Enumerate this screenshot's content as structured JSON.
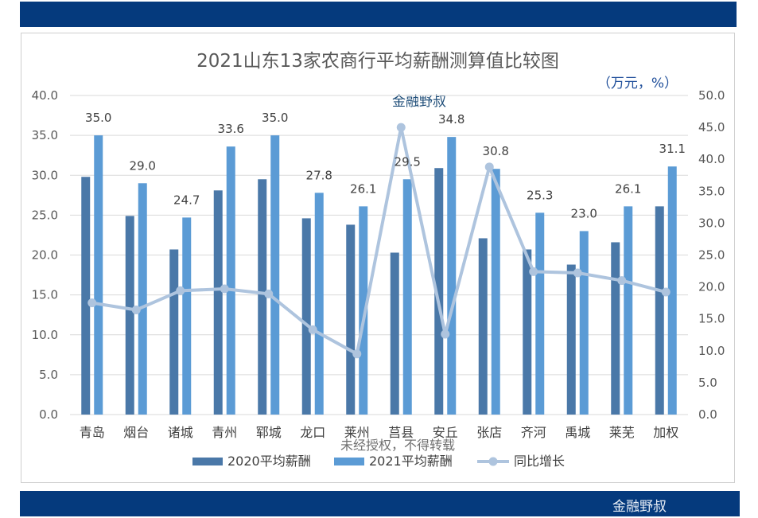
{
  "header": {
    "bar_color": "#053a7d"
  },
  "footer": {
    "brand": "金融野叔"
  },
  "watermarks": {
    "brand": "金融野叔",
    "notice": "未经授权，不得转载"
  },
  "chart_data": {
    "type": "bar",
    "title": "2021山东13家农商行平均薪酬测算值比较图",
    "unit_note": "（万元，%）",
    "categories": [
      "青岛",
      "烟台",
      "诸城",
      "青州",
      "郓城",
      "龙口",
      "莱州",
      "莒县",
      "安丘",
      "张店",
      "齐河",
      "禹城",
      "莱芜",
      "加权"
    ],
    "series": [
      {
        "name": "2020平均薪酬",
        "type": "bar",
        "axis": "left",
        "color": "#4a78a8",
        "values": [
          29.8,
          24.9,
          20.7,
          28.1,
          29.5,
          24.6,
          23.8,
          20.3,
          30.9,
          22.1,
          20.7,
          18.8,
          21.6,
          26.1
        ]
      },
      {
        "name": "2021平均薪酬",
        "type": "bar",
        "axis": "left",
        "color": "#5b9bd5",
        "values": [
          35.0,
          29.0,
          24.7,
          33.6,
          35.0,
          27.8,
          26.1,
          29.5,
          34.8,
          30.8,
          25.3,
          23.0,
          26.1,
          31.1
        ],
        "labels": [
          "35.0",
          "29.0",
          "24.7",
          "33.6",
          "35.0",
          "27.8",
          "26.1",
          "29.5",
          "34.8",
          "30.8",
          "25.3",
          "23.0",
          "26.1",
          "31.1"
        ]
      },
      {
        "name": "同比增长",
        "type": "line",
        "axis": "right",
        "color": "#aec4de",
        "values": [
          17.5,
          16.4,
          19.4,
          19.7,
          18.9,
          13.3,
          9.5,
          45.0,
          12.6,
          38.8,
          22.4,
          22.2,
          21.0,
          19.2
        ]
      }
    ],
    "y_left": {
      "min": 0,
      "max": 40,
      "step": 5,
      "ticks": [
        "0.0",
        "5.0",
        "10.0",
        "15.0",
        "20.0",
        "25.0",
        "30.0",
        "35.0",
        "40.0"
      ]
    },
    "y_right": {
      "min": 0,
      "max": 50,
      "step": 5,
      "ticks": [
        "0.0",
        "5.0",
        "10.0",
        "15.0",
        "20.0",
        "25.0",
        "30.0",
        "35.0",
        "40.0",
        "45.0",
        "50.0"
      ]
    },
    "grid": true,
    "legend_position": "bottom"
  }
}
